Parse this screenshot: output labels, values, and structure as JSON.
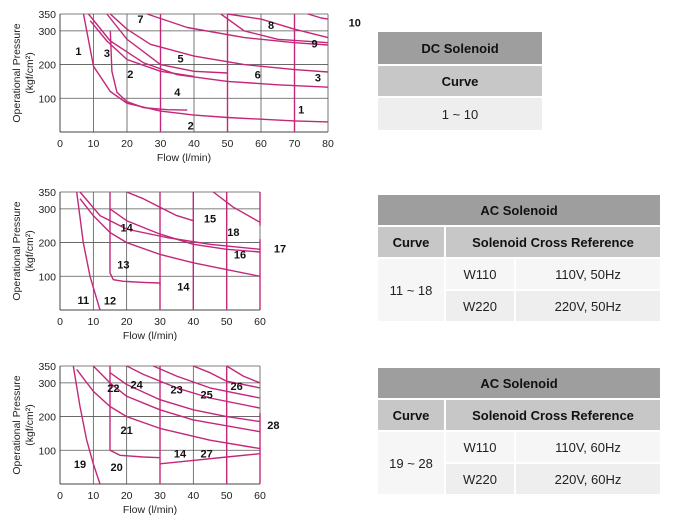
{
  "chart_data": [
    {
      "type": "line",
      "title": "",
      "xlabel": "Flow  (l/min)",
      "ylabel": "Operational Pressure",
      "yunit": "(kgf/cm²)",
      "xlim": [
        0,
        80
      ],
      "ylim": [
        0,
        350
      ],
      "xticks": [
        0,
        10,
        20,
        30,
        40,
        50,
        60,
        70,
        80
      ],
      "yticks": [
        100,
        200,
        300,
        350
      ],
      "series": [
        {
          "name": "1",
          "x": [
            7,
            10,
            15,
            20,
            30,
            40,
            50,
            60,
            70,
            80
          ],
          "y": [
            350,
            195,
            120,
            85,
            62,
            50,
            43,
            38,
            33,
            30
          ]
        },
        {
          "name": "2",
          "x": [
            15,
            15.5,
            17,
            20,
            25,
            32,
            38
          ],
          "y": [
            300,
            180,
            118,
            90,
            72,
            66,
            65
          ]
        },
        {
          "name": "3",
          "x": [
            8.5,
            15,
            25,
            35,
            50,
            65,
            80
          ],
          "y": [
            350,
            270,
            205,
            170,
            150,
            140,
            133
          ]
        },
        {
          "name": "4",
          "x": [
            9,
            14,
            20,
            30,
            40
          ],
          "y": [
            330,
            270,
            215,
            180,
            165
          ]
        },
        {
          "name": "5",
          "x": [
            15,
            20,
            27,
            40,
            55,
            70,
            80
          ],
          "y": [
            350,
            305,
            260,
            225,
            200,
            185,
            178
          ]
        },
        {
          "name": "6",
          "x": [
            14,
            20,
            30,
            40,
            50
          ],
          "y": [
            350,
            275,
            200,
            180,
            175
          ]
        },
        {
          "name": "7",
          "x": [
            26,
            38,
            55,
            70,
            80
          ],
          "y": [
            350,
            310,
            280,
            265,
            258
          ]
        },
        {
          "name": "8",
          "x": [
            50,
            60,
            70,
            80
          ],
          "y": [
            350,
            335,
            305,
            280
          ]
        },
        {
          "name": "9",
          "x": [
            48,
            55,
            65,
            80
          ],
          "y": [
            350,
            300,
            275,
            265
          ]
        },
        {
          "name": "10",
          "x": [
            74,
            78,
            80
          ],
          "y": [
            350,
            338,
            335
          ]
        },
        {
          "name": "V30",
          "x": [
            30,
            30
          ],
          "y": [
            0,
            350
          ]
        },
        {
          "name": "V50",
          "x": [
            50,
            50
          ],
          "y": [
            0,
            350
          ]
        },
        {
          "name": "V70",
          "x": [
            70,
            70
          ],
          "y": [
            0,
            350
          ]
        }
      ]
    },
    {
      "type": "line",
      "title": "",
      "xlabel": "Flow  (l/min)",
      "ylabel": "Operational Pressure",
      "yunit": "(kgf/cm²)",
      "xlim": [
        0,
        60
      ],
      "ylim": [
        0,
        350
      ],
      "xticks": [
        0,
        10,
        20,
        30,
        40,
        50,
        60
      ],
      "yticks": [
        100,
        200,
        300,
        350
      ],
      "series": [
        {
          "name": "11",
          "x": [
            5,
            7,
            9,
            12
          ],
          "y": [
            350,
            200,
            100,
            0
          ]
        },
        {
          "name": "12",
          "x": [
            15,
            15,
            16,
            19,
            25,
            30,
            30
          ],
          "y": [
            350,
            110,
            90,
            85,
            82,
            80,
            75
          ]
        },
        {
          "name": "13",
          "x": [
            6,
            10,
            15,
            20,
            30,
            40,
            60
          ],
          "y": [
            330,
            280,
            230,
            200,
            165,
            140,
            100
          ]
        },
        {
          "name": "14",
          "x": [
            6,
            12,
            20,
            32,
            45,
            60
          ],
          "y": [
            350,
            280,
            240,
            215,
            195,
            180
          ]
        },
        {
          "name": "15",
          "x": [
            20,
            25,
            30,
            35,
            40
          ],
          "y": [
            350,
            330,
            305,
            280,
            265
          ]
        },
        {
          "name": "16",
          "x": [
            15,
            20,
            30,
            40,
            50,
            60
          ],
          "y": [
            300,
            265,
            225,
            195,
            180,
            172
          ]
        },
        {
          "name": "17",
          "x": [
            60,
            60
          ],
          "y": [
            0,
            210
          ]
        },
        {
          "name": "18",
          "x": [
            46,
            52,
            60
          ],
          "y": [
            350,
            305,
            260
          ]
        },
        {
          "name": "V30",
          "x": [
            30,
            30
          ],
          "y": [
            0,
            350
          ]
        },
        {
          "name": "V40",
          "x": [
            40,
            40
          ],
          "y": [
            0,
            350
          ]
        },
        {
          "name": "V50",
          "x": [
            50,
            50
          ],
          "y": [
            0,
            350
          ]
        },
        {
          "name": "V60",
          "x": [
            60,
            60
          ],
          "y": [
            250,
            350
          ]
        }
      ]
    },
    {
      "type": "line",
      "title": "",
      "xlabel": "Flow  (l/min)",
      "ylabel": "Operational Pressure",
      "yunit": "(kgf/cm²)",
      "xlim": [
        0,
        60
      ],
      "ylim": [
        0,
        350
      ],
      "xticks": [
        0,
        10,
        20,
        30,
        40,
        50,
        60
      ],
      "yticks": [
        100,
        200,
        300,
        350
      ],
      "series": [
        {
          "name": "19",
          "x": [
            4,
            6,
            8,
            10,
            12
          ],
          "y": [
            350,
            230,
            130,
            60,
            0
          ]
        },
        {
          "name": "20",
          "x": [
            15,
            15,
            18,
            25,
            30
          ],
          "y": [
            350,
            100,
            85,
            80,
            78
          ]
        },
        {
          "name": "21",
          "x": [
            5,
            10,
            15,
            20,
            30,
            45,
            60
          ],
          "y": [
            340,
            275,
            230,
            200,
            165,
            130,
            105
          ]
        },
        {
          "name": "22",
          "x": [
            10,
            15,
            20,
            30,
            40,
            60
          ],
          "y": [
            350,
            300,
            260,
            220,
            190,
            155
          ]
        },
        {
          "name": "23",
          "x": [
            15,
            20,
            30,
            40,
            50,
            60
          ],
          "y": [
            330,
            295,
            250,
            220,
            200,
            185
          ]
        },
        {
          "name": "24",
          "x": [
            20,
            25,
            35,
            45,
            60
          ],
          "y": [
            350,
            325,
            285,
            255,
            225
          ]
        },
        {
          "name": "25",
          "x": [
            28,
            35,
            45,
            55,
            60
          ],
          "y": [
            350,
            320,
            285,
            265,
            255
          ]
        },
        {
          "name": "26",
          "x": [
            40,
            45,
            50,
            60
          ],
          "y": [
            350,
            330,
            305,
            285
          ]
        },
        {
          "name": "27",
          "x": [
            30,
            40,
            50,
            60
          ],
          "y": [
            60,
            70,
            80,
            90
          ]
        },
        {
          "name": "28",
          "x": [
            50,
            55,
            60
          ],
          "y": [
            350,
            320,
            300
          ]
        },
        {
          "name": "V30",
          "x": [
            30,
            30
          ],
          "y": [
            0,
            350
          ]
        },
        {
          "name": "V50",
          "x": [
            50,
            50
          ],
          "y": [
            0,
            350
          ]
        },
        {
          "name": "V60",
          "x": [
            60,
            60
          ],
          "y": [
            0,
            210
          ]
        }
      ]
    }
  ],
  "tables": {
    "dc": {
      "title": "DC Solenoid",
      "col": "Curve",
      "value": "1 ~ 10"
    },
    "ac50": {
      "title": "AC Solenoid",
      "col_curve": "Curve",
      "col_ref": "Solenoid Cross Reference",
      "curves": "11 ~ 18",
      "rows": [
        {
          "model": "W110",
          "spec": "110V, 50Hz"
        },
        {
          "model": "W220",
          "spec": "220V, 50Hz"
        }
      ]
    },
    "ac60": {
      "title": "AC Solenoid",
      "col_curve": "Curve",
      "col_ref": "Solenoid Cross Reference",
      "curves": "19 ~ 28",
      "rows": [
        {
          "model": "W110",
          "spec": "110V, 60Hz"
        },
        {
          "model": "W220",
          "spec": "220V, 60Hz"
        }
      ]
    }
  },
  "colors": {
    "curve": "#c4277a",
    "header": "#9e9e9e",
    "subheader": "#c7c7c7",
    "cell": "#eeeeee"
  }
}
